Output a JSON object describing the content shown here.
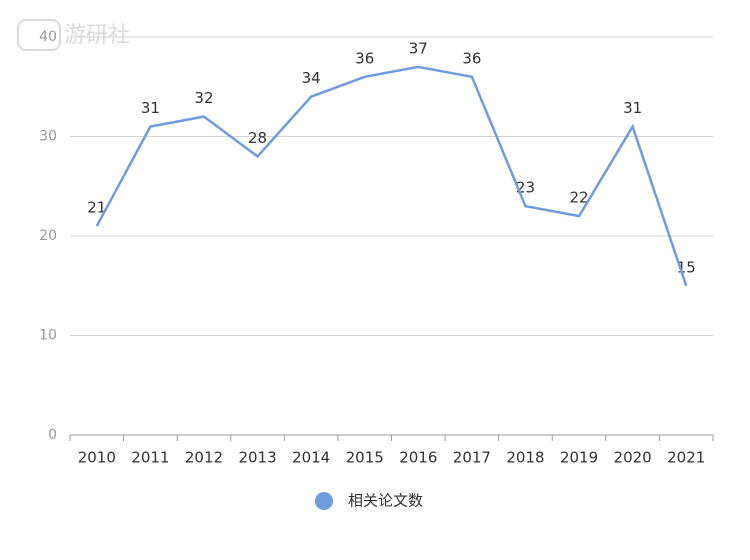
{
  "watermark": "游研社",
  "chart_data": {
    "type": "line",
    "categories": [
      "2010",
      "2011",
      "2012",
      "2013",
      "2014",
      "2015",
      "2016",
      "2017",
      "2018",
      "2019",
      "2020",
      "2021"
    ],
    "series": [
      {
        "name": "相关论文数",
        "color": "#6f9be0",
        "values": [
          21,
          31,
          32,
          28,
          34,
          36,
          37,
          36,
          23,
          22,
          31,
          15
        ]
      }
    ],
    "ylim": [
      0,
      40
    ],
    "yticks": [
      0,
      10,
      20,
      30,
      40
    ],
    "grid": true,
    "legend": "bottom"
  }
}
